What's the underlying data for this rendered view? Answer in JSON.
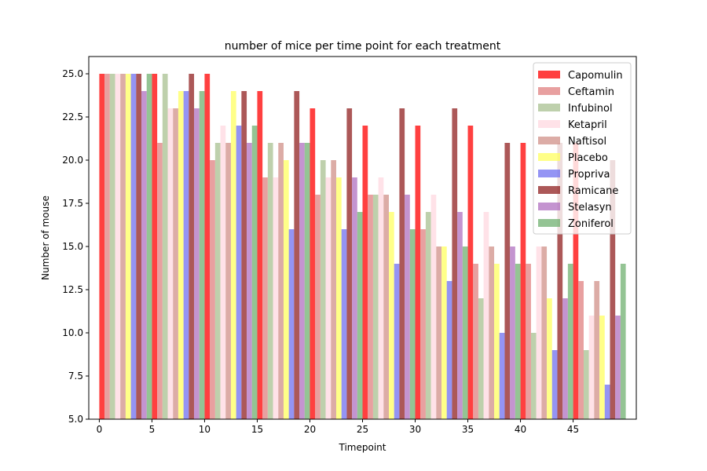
{
  "chart_data": {
    "type": "bar",
    "title": "number of mice per time point for each treatment",
    "xlabel": "Timepoint",
    "ylabel": "Number of mouse",
    "x": [
      0,
      5,
      10,
      15,
      20,
      25,
      30,
      35,
      40,
      45
    ],
    "xticks": [
      "0",
      "5",
      "10",
      "15",
      "20",
      "25",
      "30",
      "35",
      "40",
      "45"
    ],
    "yticks": [
      "5.0",
      "7.5",
      "10.0",
      "12.5",
      "15.0",
      "17.5",
      "20.0",
      "22.5",
      "25.0"
    ],
    "ylim": [
      5,
      26
    ],
    "xlim": [
      -1,
      51
    ],
    "grid": false,
    "legend_position": "upper-right",
    "series": [
      {
        "name": "Capomulin",
        "color": "#ff0000",
        "alpha": 0.75,
        "values": [
          25,
          25,
          25,
          24,
          23,
          22,
          22,
          22,
          21,
          21
        ]
      },
      {
        "name": "Ceftamin",
        "color": "#e08080",
        "alpha": 0.75,
        "values": [
          25,
          21,
          20,
          19,
          18,
          18,
          16,
          14,
          14,
          13
        ]
      },
      {
        "name": "Infubinol",
        "color": "#a8c090",
        "alpha": 0.75,
        "values": [
          25,
          25,
          21,
          21,
          20,
          18,
          17,
          12,
          10,
          9
        ]
      },
      {
        "name": "Ketapril",
        "color": "#ffd8e0",
        "alpha": 0.75,
        "values": [
          25,
          23,
          22,
          19,
          19,
          19,
          18,
          17,
          15,
          11
        ]
      },
      {
        "name": "Naftisol",
        "color": "#d09088",
        "alpha": 0.75,
        "values": [
          25,
          23,
          21,
          21,
          20,
          18,
          15,
          15,
          15,
          13
        ]
      },
      {
        "name": "Placebo",
        "color": "#ffff60",
        "alpha": 0.75,
        "values": [
          25,
          24,
          24,
          20,
          19,
          17,
          15,
          14,
          12,
          11
        ]
      },
      {
        "name": "Propriva",
        "color": "#7070f0",
        "alpha": 0.75,
        "values": [
          25,
          24,
          22,
          16,
          16,
          14,
          13,
          10,
          9,
          7
        ]
      },
      {
        "name": "Ramicane",
        "color": "#902020",
        "alpha": 0.75,
        "values": [
          25,
          25,
          24,
          24,
          23,
          23,
          23,
          21,
          21,
          20
        ]
      },
      {
        "name": "Stelasyn",
        "color": "#b070c0",
        "alpha": 0.75,
        "values": [
          24,
          23,
          21,
          21,
          19,
          18,
          17,
          15,
          12,
          11
        ]
      },
      {
        "name": "Zoniferol",
        "color": "#70b070",
        "alpha": 0.75,
        "values": [
          25,
          24,
          22,
          21,
          17,
          16,
          15,
          14,
          14,
          14
        ]
      }
    ]
  }
}
